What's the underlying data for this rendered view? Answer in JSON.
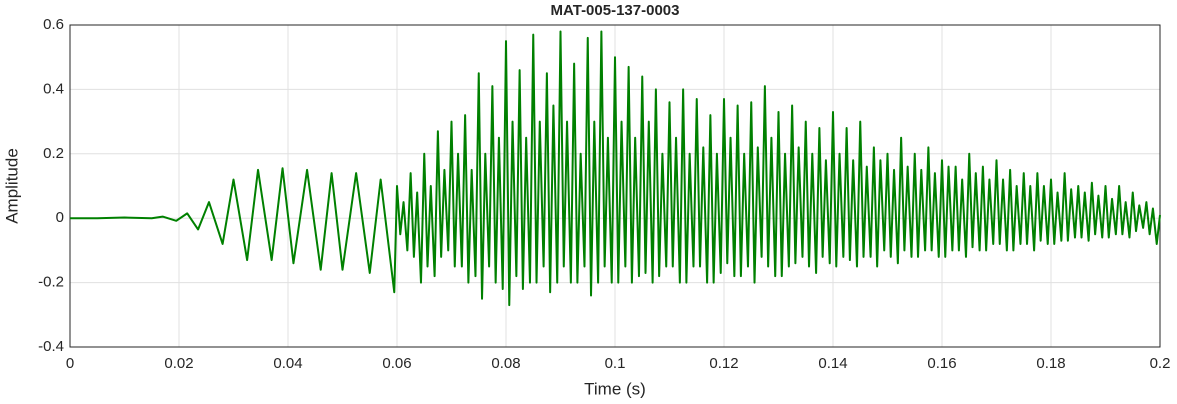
{
  "chart_data": {
    "type": "line",
    "title": "MAT-005-137-0003",
    "x_label": "Time (s)",
    "y_label": "Amplitude",
    "color": "#008000",
    "grid": true,
    "xlim": [
      0,
      0.2
    ],
    "xticks": [
      0,
      0.02,
      0.04,
      0.06,
      0.08,
      0.1,
      0.12,
      0.14,
      0.16,
      0.18,
      0.2
    ],
    "ylim": [
      -0.4,
      0.6
    ],
    "yticks": [
      -0.4,
      -0.2,
      0,
      0.2,
      0.4,
      0.6
    ],
    "x": [
      0,
      0.005,
      0.01,
      0.015,
      0.017,
      0.0195,
      0.0215,
      0.0235,
      0.0255,
      0.028,
      0.03,
      0.0325,
      0.0345,
      0.037,
      0.039,
      0.041,
      0.0435,
      0.046,
      0.048,
      0.05,
      0.0525,
      0.055,
      0.057,
      0.0595,
      0.06,
      0.0606,
      0.0612,
      0.0619,
      0.0625,
      0.0631,
      0.0637,
      0.0644,
      0.065,
      0.0656,
      0.0662,
      0.0669,
      0.0675,
      0.0681,
      0.0687,
      0.0694,
      0.07,
      0.0706,
      0.0712,
      0.0719,
      0.0725,
      0.0731,
      0.0737,
      0.0744,
      0.075,
      0.0756,
      0.0762,
      0.0769,
      0.0775,
      0.0781,
      0.0787,
      0.0794,
      0.08,
      0.0806,
      0.0812,
      0.0819,
      0.0825,
      0.0831,
      0.0837,
      0.0844,
      0.085,
      0.0856,
      0.0862,
      0.0869,
      0.0875,
      0.0881,
      0.0887,
      0.0894,
      0.09,
      0.0906,
      0.0912,
      0.0919,
      0.0925,
      0.0931,
      0.0937,
      0.0944,
      0.095,
      0.0956,
      0.0962,
      0.0969,
      0.0975,
      0.0981,
      0.0987,
      0.0994,
      0.1,
      0.1006,
      0.1012,
      0.1019,
      0.1025,
      0.1031,
      0.1037,
      0.1044,
      0.105,
      0.1056,
      0.1062,
      0.1069,
      0.1075,
      0.1081,
      0.1087,
      0.1094,
      0.11,
      0.1106,
      0.1112,
      0.1119,
      0.1125,
      0.1131,
      0.1137,
      0.1144,
      0.115,
      0.1156,
      0.1162,
      0.1169,
      0.1175,
      0.1181,
      0.1187,
      0.1194,
      0.12,
      0.1206,
      0.1212,
      0.1219,
      0.1225,
      0.1231,
      0.1237,
      0.1244,
      0.125,
      0.1256,
      0.1262,
      0.1269,
      0.1275,
      0.1281,
      0.1287,
      0.1294,
      0.13,
      0.1306,
      0.1312,
      0.1319,
      0.1325,
      0.1331,
      0.1337,
      0.1344,
      0.135,
      0.1356,
      0.1362,
      0.1369,
      0.1375,
      0.1381,
      0.1387,
      0.1394,
      0.14,
      0.1406,
      0.1412,
      0.1419,
      0.1425,
      0.1431,
      0.1437,
      0.1444,
      0.145,
      0.1456,
      0.1462,
      0.1469,
      0.1475,
      0.1481,
      0.1487,
      0.1494,
      0.15,
      0.1506,
      0.1512,
      0.1519,
      0.1525,
      0.1531,
      0.1537,
      0.1544,
      0.155,
      0.1556,
      0.1562,
      0.1569,
      0.1575,
      0.1581,
      0.1587,
      0.1594,
      0.16,
      0.1606,
      0.1612,
      0.1619,
      0.1625,
      0.1631,
      0.1637,
      0.1644,
      0.165,
      0.1656,
      0.1662,
      0.1669,
      0.1675,
      0.1681,
      0.1687,
      0.1694,
      0.17,
      0.1706,
      0.1712,
      0.1719,
      0.1725,
      0.1731,
      0.1737,
      0.1744,
      0.175,
      0.1756,
      0.1762,
      0.1769,
      0.1775,
      0.1781,
      0.1787,
      0.1794,
      0.18,
      0.1806,
      0.1812,
      0.1819,
      0.1825,
      0.1831,
      0.1837,
      0.1844,
      0.185,
      0.1856,
      0.1862,
      0.1869,
      0.1875,
      0.1881,
      0.1887,
      0.1894,
      0.19,
      0.1906,
      0.1912,
      0.1919,
      0.1925,
      0.1931,
      0.1937,
      0.1944,
      0.195,
      0.1956,
      0.1962,
      0.1969,
      0.1975,
      0.1981,
      0.1987,
      0.1994,
      0.2
    ],
    "values": [
      0,
      0,
      0.002,
      0,
      0.005,
      -0.008,
      0.015,
      -0.035,
      0.05,
      -0.08,
      0.12,
      -0.13,
      0.15,
      -0.13,
      0.155,
      -0.14,
      0.15,
      -0.16,
      0.14,
      -0.16,
      0.14,
      -0.17,
      0.12,
      -0.23,
      0.1,
      -0.05,
      0.05,
      -0.1,
      0.14,
      -0.12,
      0.08,
      -0.2,
      0.2,
      -0.15,
      0.1,
      -0.18,
      0.27,
      -0.12,
      0.15,
      -0.1,
      0.3,
      -0.15,
      0.2,
      -0.15,
      0.32,
      -0.2,
      0.15,
      -0.18,
      0.45,
      -0.25,
      0.2,
      -0.15,
      0.41,
      -0.2,
      0.25,
      -0.22,
      0.55,
      -0.27,
      0.3,
      -0.18,
      0.46,
      -0.22,
      0.25,
      -0.2,
      0.57,
      -0.2,
      0.3,
      -0.15,
      0.45,
      -0.23,
      0.35,
      -0.2,
      0.58,
      -0.15,
      0.3,
      -0.2,
      0.48,
      -0.2,
      0.2,
      -0.15,
      0.56,
      -0.24,
      0.3,
      -0.2,
      0.58,
      -0.15,
      0.25,
      -0.2,
      0.5,
      -0.2,
      0.3,
      -0.15,
      0.47,
      -0.2,
      0.25,
      -0.18,
      0.44,
      -0.17,
      0.3,
      -0.2,
      0.4,
      -0.18,
      0.2,
      -0.15,
      0.36,
      -0.15,
      0.25,
      -0.2,
      0.4,
      -0.2,
      0.2,
      -0.15,
      0.37,
      -0.15,
      0.22,
      -0.2,
      0.32,
      -0.2,
      0.2,
      -0.17,
      0.37,
      -0.14,
      0.25,
      -0.18,
      0.35,
      -0.18,
      0.2,
      -0.15,
      0.36,
      -0.2,
      0.22,
      -0.12,
      0.41,
      -0.15,
      0.25,
      -0.18,
      0.33,
      -0.18,
      0.2,
      -0.15,
      0.35,
      -0.14,
      0.22,
      -0.12,
      0.3,
      -0.15,
      0.2,
      -0.17,
      0.28,
      -0.12,
      0.18,
      -0.14,
      0.33,
      -0.15,
      0.2,
      -0.12,
      0.28,
      -0.13,
      0.18,
      -0.15,
      0.3,
      -0.12,
      0.16,
      -0.12,
      0.22,
      -0.15,
      0.18,
      -0.1,
      0.2,
      -0.12,
      0.15,
      -0.14,
      0.25,
      -0.1,
      0.16,
      -0.12,
      0.2,
      -0.12,
      0.15,
      -0.1,
      0.22,
      -0.1,
      0.14,
      -0.12,
      0.18,
      -0.12,
      0.16,
      -0.1,
      0.16,
      -0.1,
      0.12,
      -0.12,
      0.2,
      -0.09,
      0.14,
      -0.1,
      0.16,
      -0.1,
      0.12,
      -0.08,
      0.18,
      -0.08,
      0.12,
      -0.1,
      0.15,
      -0.1,
      0.1,
      -0.08,
      0.14,
      -0.08,
      0.1,
      -0.1,
      0.14,
      -0.07,
      0.1,
      -0.08,
      0.12,
      -0.08,
      0.08,
      -0.07,
      0.14,
      -0.07,
      0.09,
      -0.06,
      0.1,
      -0.06,
      0.08,
      -0.07,
      0.11,
      -0.05,
      0.07,
      -0.06,
      0.1,
      -0.06,
      0.06,
      -0.05,
      0.1,
      -0.05,
      0.05,
      -0.06,
      0.08,
      -0.04,
      0.04,
      -0.03,
      0.05,
      -0.05,
      0.03,
      -0.08,
      0.01
    ]
  }
}
